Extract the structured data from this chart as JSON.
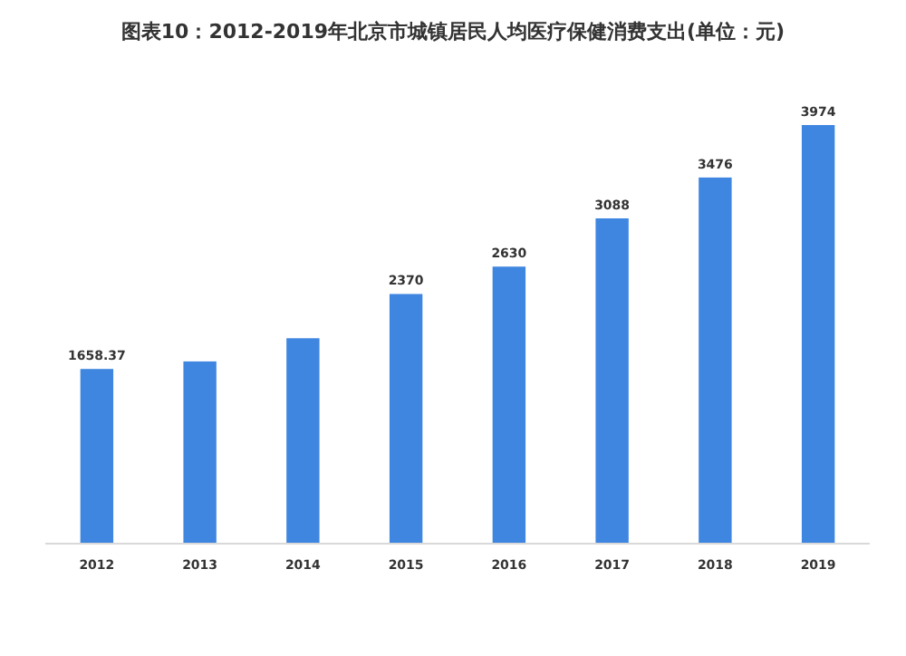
{
  "chart_data": {
    "type": "bar",
    "title": "图表10：2012-2019年北京市城镇居民人均医疗保健消费支出(单位：元)",
    "categories": [
      "2012",
      "2013",
      "2014",
      "2015",
      "2016",
      "2017",
      "2018",
      "2019"
    ],
    "values": [
      1658.37,
      1730,
      1950,
      2370,
      2630,
      3088,
      3476,
      3974
    ],
    "value_labels": [
      "1658.37",
      null,
      null,
      "2370",
      "2630",
      "3088",
      "3476",
      "3974"
    ],
    "color": "#3f86e0"
  }
}
